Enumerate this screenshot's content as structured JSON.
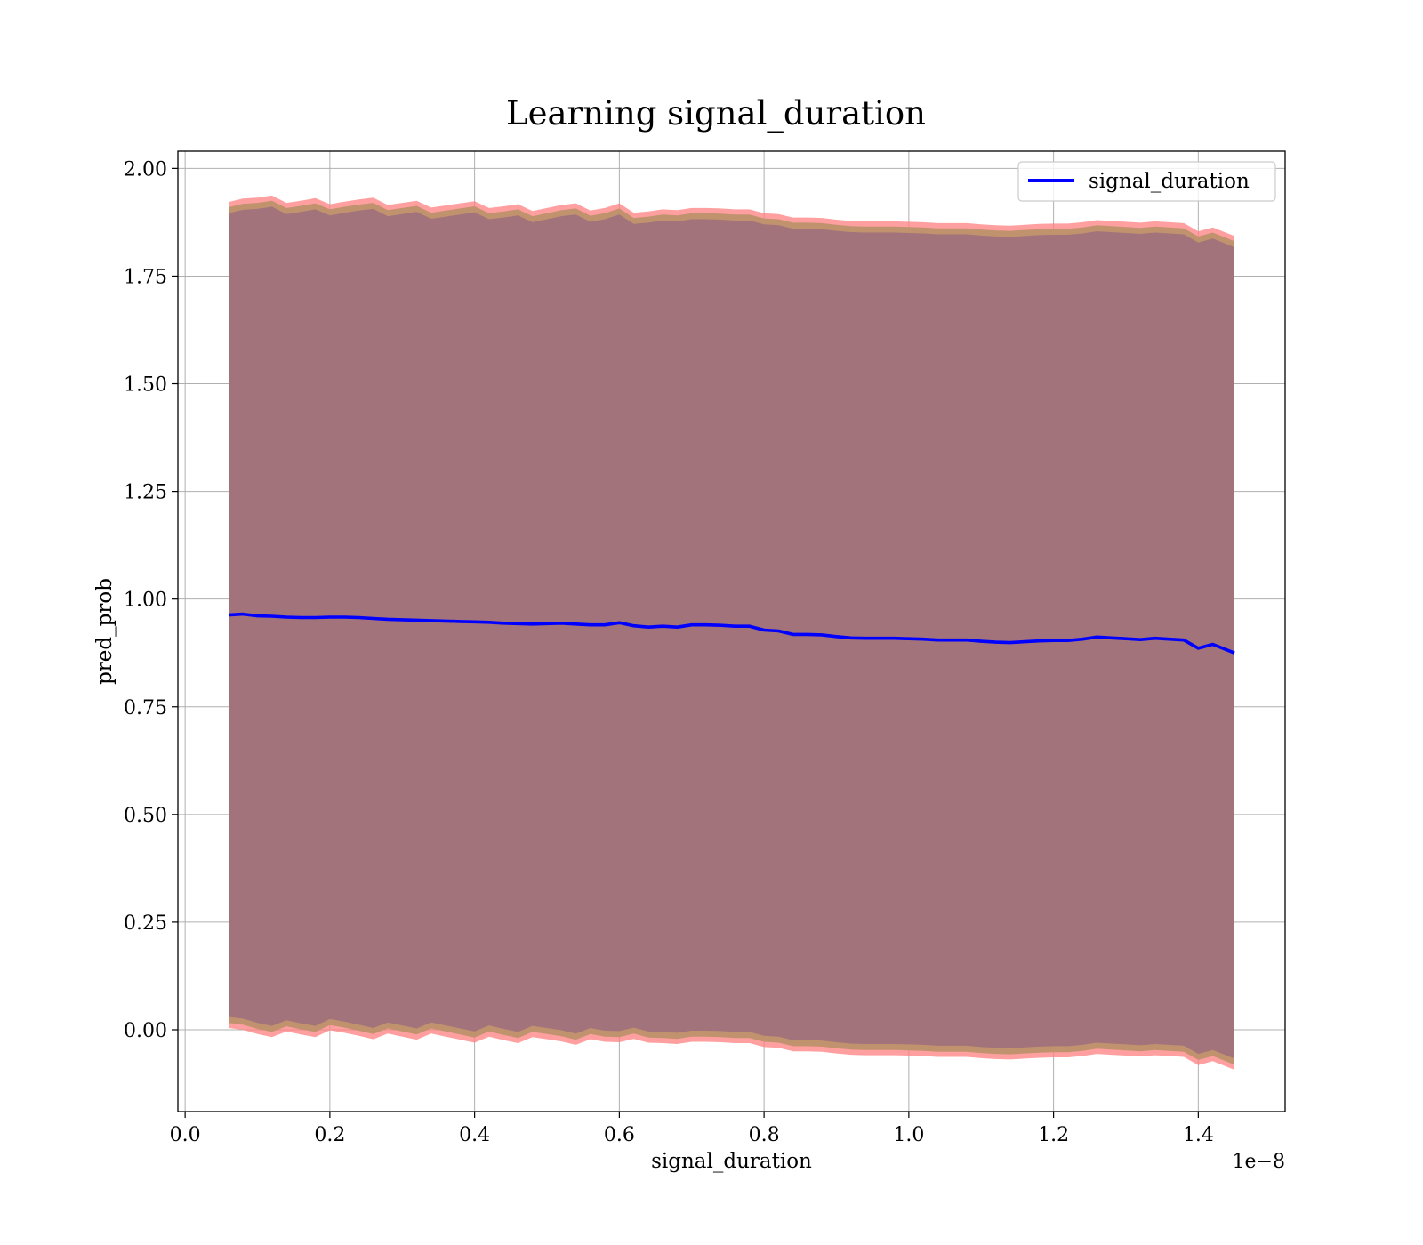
{
  "chart_data": {
    "type": "line",
    "title": "Learning signal_duration",
    "xlabel": "signal_duration",
    "ylabel": "pred_prob",
    "x_offset_label": "1e−8",
    "xlim": [
      -0.01,
      1.52
    ],
    "ylim": [
      -0.19,
      2.04
    ],
    "x_ticks": [
      0.0,
      0.2,
      0.4,
      0.6,
      0.8,
      1.0,
      1.2,
      1.4
    ],
    "x_tick_labels": [
      "0.0",
      "0.2",
      "0.4",
      "0.6",
      "0.8",
      "1.0",
      "1.2",
      "1.4"
    ],
    "y_ticks": [
      0.0,
      0.25,
      0.5,
      0.75,
      1.0,
      1.25,
      1.5,
      1.75,
      2.0
    ],
    "y_tick_labels": [
      "0.00",
      "0.25",
      "0.50",
      "0.75",
      "1.00",
      "1.25",
      "1.50",
      "1.75",
      "2.00"
    ],
    "grid": true,
    "legend_position": "top-right",
    "colors": {
      "line": "#0000ff",
      "band_outer": "#ff7f7f",
      "band_inner": "#c0926e",
      "band_core": "#a2737b",
      "grid": "#b0b0b0"
    },
    "series": [
      {
        "name": "signal_duration",
        "x": [
          0.06,
          0.08,
          0.1,
          0.12,
          0.14,
          0.16,
          0.18,
          0.2,
          0.22,
          0.24,
          0.26,
          0.28,
          0.3,
          0.32,
          0.34,
          0.36,
          0.38,
          0.4,
          0.42,
          0.44,
          0.46,
          0.48,
          0.5,
          0.52,
          0.54,
          0.56,
          0.58,
          0.6,
          0.62,
          0.64,
          0.66,
          0.68,
          0.7,
          0.72,
          0.74,
          0.76,
          0.78,
          0.8,
          0.82,
          0.84,
          0.86,
          0.88,
          0.9,
          0.92,
          0.94,
          0.96,
          0.98,
          1.0,
          1.02,
          1.04,
          1.06,
          1.08,
          1.1,
          1.12,
          1.14,
          1.16,
          1.18,
          1.2,
          1.22,
          1.24,
          1.26,
          1.28,
          1.3,
          1.32,
          1.34,
          1.36,
          1.38,
          1.4,
          1.42,
          1.45
        ],
        "y": [
          0.963,
          0.965,
          0.961,
          0.96,
          0.958,
          0.957,
          0.957,
          0.958,
          0.958,
          0.957,
          0.955,
          0.953,
          0.952,
          0.951,
          0.95,
          0.949,
          0.948,
          0.947,
          0.946,
          0.944,
          0.943,
          0.942,
          0.943,
          0.944,
          0.942,
          0.94,
          0.94,
          0.945,
          0.938,
          0.935,
          0.937,
          0.935,
          0.94,
          0.94,
          0.939,
          0.937,
          0.937,
          0.928,
          0.926,
          0.918,
          0.918,
          0.917,
          0.913,
          0.91,
          0.909,
          0.909,
          0.909,
          0.908,
          0.907,
          0.905,
          0.905,
          0.905,
          0.902,
          0.9,
          0.899,
          0.901,
          0.903,
          0.904,
          0.904,
          0.907,
          0.912,
          0.91,
          0.908,
          0.906,
          0.909,
          0.907,
          0.905,
          0.886,
          0.895,
          0.875
        ],
        "band_half_width": 0.96
      }
    ]
  }
}
